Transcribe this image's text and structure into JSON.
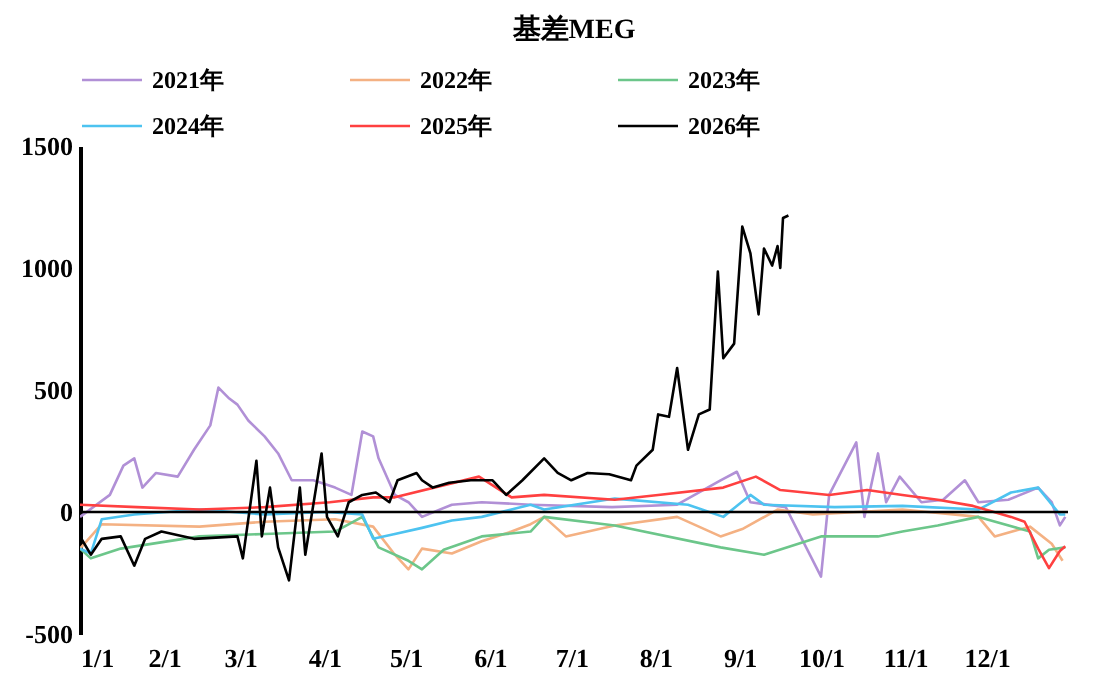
{
  "chart_data": {
    "type": "line",
    "title": "基差MEG",
    "legend": "top",
    "grid": false,
    "xlim": [
      "--01-01",
      "--12-31"
    ],
    "xticks": [
      {
        "value": "--01-01",
        "label": "1/1"
      },
      {
        "value": "--02-01",
        "label": "2/1"
      },
      {
        "value": "--03-01",
        "label": "3/1"
      },
      {
        "value": "--04-01",
        "label": "4/1"
      },
      {
        "value": "--05-01",
        "label": "5/1"
      },
      {
        "value": "--06-01",
        "label": "6/1"
      },
      {
        "value": "--07-01",
        "label": "7/1"
      },
      {
        "value": "--08-01",
        "label": "8/1"
      },
      {
        "value": "--09-01",
        "label": "9/1"
      },
      {
        "value": "--10-01",
        "label": "10/1"
      },
      {
        "value": "--11-01",
        "label": "11/1"
      },
      {
        "value": "--12-01",
        "label": "12/1"
      }
    ],
    "ylim": [
      -500,
      1500
    ],
    "yticks": [
      -500,
      0,
      500,
      1000,
      1500
    ],
    "ref_lines": [
      {
        "axis": "y",
        "value": 0,
        "color": "#000000"
      }
    ],
    "series": [
      {
        "name": "2021年",
        "color": "#b190d6",
        "x": [
          "--01-01",
          "--01-12",
          "--01-17",
          "--01-21",
          "--01-24",
          "--01-29",
          "--02-06",
          "--02-12",
          "--02-18",
          "--02-21",
          "--02-25",
          "--02-28",
          "--03-04",
          "--03-10",
          "--03-15",
          "--03-20",
          "--03-28",
          "--04-05",
          "--04-11",
          "--04-15",
          "--04-19",
          "--04-21",
          "--04-27",
          "--05-02",
          "--05-07",
          "--05-18",
          "--05-29",
          "--06-16",
          "--07-16",
          "--08-09",
          "--08-25",
          "--08-31",
          "--09-05",
          "--09-18",
          "--10-01",
          "--10-04",
          "--10-14",
          "--10-17",
          "--10-22",
          "--10-25",
          "--10-30",
          "--11-07",
          "--11-15",
          "--11-23",
          "--11-28",
          "--12-09",
          "--12-20",
          "--12-25",
          "--12-28",
          "--12-30"
        ],
        "values": [
          -20,
          70,
          190,
          220,
          100,
          160,
          145,
          255,
          355,
          510,
          465,
          440,
          375,
          310,
          240,
          130,
          130,
          100,
          70,
          330,
          310,
          220,
          70,
          40,
          -20,
          30,
          40,
          30,
          20,
          30,
          130,
          165,
          40,
          20,
          -265,
          70,
          285,
          -20,
          240,
          40,
          145,
          40,
          50,
          130,
          40,
          50,
          100,
          40,
          -55,
          -20
        ]
      },
      {
        "name": "2022年",
        "color": "#f4b183",
        "x": [
          "--01-01",
          "--01-09",
          "--02-14",
          "--03-10",
          "--04-05",
          "--04-19",
          "--04-27",
          "--05-02",
          "--05-07",
          "--05-18",
          "--05-29",
          "--06-09",
          "--06-16",
          "--06-21",
          "--06-29",
          "--07-17",
          "--08-09",
          "--08-25",
          "--09-02",
          "--09-15",
          "--09-28",
          "--10-31",
          "--11-28",
          "--12-04",
          "--12-17",
          "--12-25",
          "--12-29"
        ],
        "values": [
          -150,
          -50,
          -60,
          -40,
          -30,
          -60,
          -175,
          -235,
          -150,
          -170,
          -120,
          -80,
          -50,
          -20,
          -100,
          -55,
          -20,
          -100,
          -70,
          10,
          -10,
          10,
          -20,
          -100,
          -60,
          -130,
          -200
        ]
      },
      {
        "name": "2023年",
        "color": "#6cc68a",
        "x": [
          "--01-01",
          "--01-05",
          "--01-16",
          "--02-14",
          "--03-10",
          "--04-05",
          "--04-15",
          "--04-21",
          "--05-02",
          "--05-07",
          "--05-15",
          "--05-29",
          "--06-16",
          "--06-21",
          "--07-17",
          "--08-25",
          "--09-10",
          "--10-01",
          "--10-22",
          "--10-31",
          "--11-13",
          "--11-28",
          "--12-17",
          "--12-20",
          "--12-24",
          "--12-30"
        ],
        "values": [
          -150,
          -190,
          -150,
          -100,
          -90,
          -80,
          -20,
          -145,
          -200,
          -235,
          -155,
          -100,
          -80,
          -20,
          -55,
          -145,
          -175,
          -100,
          -100,
          -80,
          -55,
          -20,
          -80,
          -190,
          -155,
          -145
        ]
      },
      {
        "name": "2024年",
        "color": "#4dc3f0",
        "x": [
          "--01-01",
          "--01-05",
          "--01-09",
          "--01-21",
          "--02-14",
          "--03-10",
          "--04-02",
          "--04-15",
          "--04-19",
          "--04-27",
          "--05-07",
          "--05-18",
          "--05-29",
          "--06-16",
          "--06-21",
          "--07-17",
          "--08-13",
          "--08-26",
          "--09-05",
          "--09-10",
          "--10-06",
          "--10-31",
          "--11-28",
          "--12-10",
          "--12-20",
          "--12-28",
          "--12-30"
        ],
        "values": [
          -150,
          -170,
          -30,
          -10,
          10,
          -10,
          0,
          -10,
          -110,
          -90,
          -65,
          -35,
          -20,
          30,
          10,
          55,
          30,
          -20,
          70,
          30,
          20,
          25,
          10,
          80,
          100,
          -10,
          -10
        ]
      },
      {
        "name": "2025年",
        "color": "#ff4040",
        "x": [
          "--01-01",
          "--01-22",
          "--02-14",
          "--03-10",
          "--04-03",
          "--04-19",
          "--04-27",
          "--05-28",
          "--06-09",
          "--06-21",
          "--07-17",
          "--08-02",
          "--08-26",
          "--09-07",
          "--09-16",
          "--10-04",
          "--10-18",
          "--10-31",
          "--11-13",
          "--11-26",
          "--12-10",
          "--12-15",
          "--12-20",
          "--12-24",
          "--12-28",
          "--12-30"
        ],
        "values": [
          30,
          20,
          10,
          20,
          40,
          60,
          60,
          145,
          60,
          70,
          50,
          70,
          100,
          145,
          90,
          70,
          90,
          70,
          50,
          25,
          -20,
          -40,
          -150,
          -230,
          -160,
          -140
        ]
      },
      {
        "name": "2026年",
        "color": "#000000",
        "x": [
          "--01-01",
          "--01-05",
          "--01-09",
          "--01-16",
          "--01-21",
          "--01-25",
          "--01-31",
          "--02-12",
          "--02-28",
          "--03-02",
          "--03-07",
          "--03-09",
          "--03-12",
          "--03-15",
          "--03-19",
          "--03-23",
          "--03-25",
          "--03-31",
          "--04-02",
          "--04-06",
          "--04-10",
          "--04-15",
          "--04-20",
          "--04-25",
          "--04-28",
          "--05-05",
          "--05-07",
          "--05-11",
          "--05-17",
          "--05-25",
          "--06-02",
          "--06-07",
          "--06-13",
          "--06-21",
          "--06-26",
          "--07-01",
          "--07-07",
          "--07-15",
          "--07-23",
          "--07-25",
          "--07-31",
          "--08-02",
          "--08-06",
          "--08-09",
          "--08-13",
          "--08-17",
          "--08-21",
          "--08-24",
          "--08-26",
          "--08-30",
          "--09-02",
          "--09-05",
          "--09-08",
          "--09-10",
          "--09-13",
          "--09-15",
          "--09-16",
          "--09-17",
          "--09-19"
        ],
        "values": [
          -100,
          -175,
          -110,
          -100,
          -220,
          -110,
          -80,
          -110,
          -100,
          -190,
          210,
          -100,
          100,
          -145,
          -280,
          100,
          -175,
          240,
          -20,
          -100,
          40,
          70,
          80,
          40,
          130,
          160,
          130,
          100,
          120,
          130,
          130,
          70,
          130,
          220,
          160,
          130,
          160,
          155,
          130,
          190,
          255,
          400,
          390,
          590,
          255,
          400,
          420,
          985,
          630,
          690,
          1170,
          1060,
          810,
          1080,
          1010,
          1090,
          1000,
          1205,
          1215
        ]
      }
    ]
  }
}
